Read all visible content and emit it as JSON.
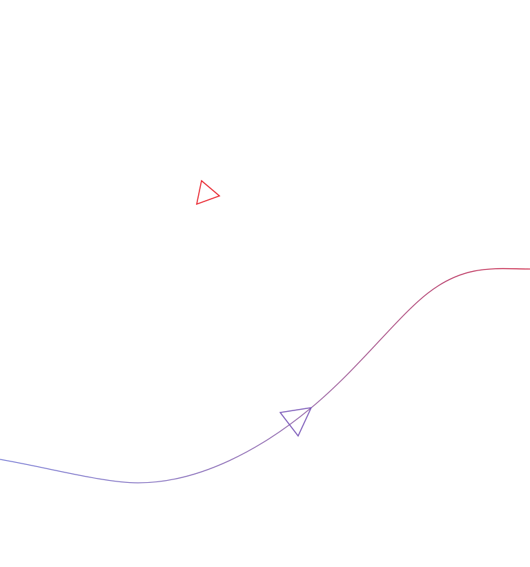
{
  "scene": {
    "background": "#ffffff",
    "shapes": [
      {
        "kind": "triangle-outline",
        "name": "red-triangle-marker",
        "stroke": "#e8202a"
      },
      {
        "kind": "curve-with-arrow",
        "name": "gradient-curve",
        "stroke_start": "#6b6fd0",
        "stroke_mid": "#8b5fa8",
        "stroke_end": "#c8163a"
      },
      {
        "kind": "triangle-outline",
        "name": "purple-arrowhead",
        "stroke": "#7a58b8"
      }
    ]
  }
}
